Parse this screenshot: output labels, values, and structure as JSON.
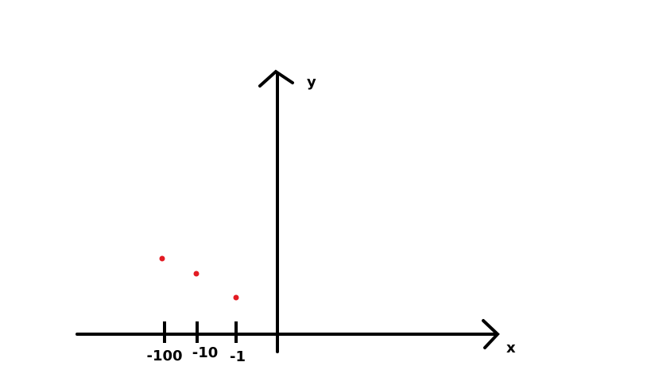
{
  "chart_data": {
    "type": "scatter",
    "x_scale": "log",
    "x_axis_label": "x",
    "y_axis_label": "y",
    "x_tick_labels": [
      "-100",
      "-10",
      "-1"
    ],
    "points": [
      {
        "x": -100
      },
      {
        "x": -10
      },
      {
        "x": -1
      }
    ],
    "point_color": "#e31b23",
    "axis_color": "#000000",
    "grid": false,
    "legend": "none"
  }
}
